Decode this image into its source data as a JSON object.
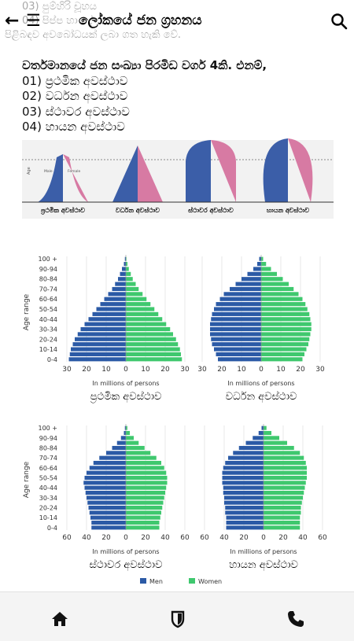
{
  "background_text": {
    "line1": "03) පුම්හිරි චූහය",
    "line2": "04) පිප්ප හා දේ",
    "line3": "පිළිබඳව අවබෝධයක් ලබා ගත හැකි වේ."
  },
  "app_bar": {
    "title": "ලෝකයේ ජන ග්‍රහනය",
    "back_icon": "arrow-left-icon",
    "menu_icon": "hamburger-icon",
    "search_icon": "search-icon"
  },
  "intro": {
    "heading": "වර්තමානයේ ජන සංඛ්‍යා පිරමිඩ වර්ග 4කි. එනම්,",
    "items": [
      "01) ප්‍රථමික අවස්ථාව",
      "02) වර්ධන අවස්ථාව",
      "03) ස්ථාවර අවස්ථාව",
      "04) හායන අවස්ථාව"
    ]
  },
  "shapes_figure": {
    "axis_label": "Age",
    "male_label": "Male",
    "female_label": "Female",
    "labels": [
      "ප්‍රථමික අවස්ථාව",
      "වර්ධන අවස්ථාව",
      "ස්ථාවර අවස්ථාව",
      "හායන අවස්ථාව"
    ]
  },
  "pyramid_labels": {
    "ylabel": "Age range",
    "xlabel": "In millions of persons",
    "legend_men": "Men",
    "legend_women": "Women",
    "captions": [
      "ප්‍රථමික අවස්ථාව",
      "වර්ධන අවස්ථාව",
      "ස්ථාවර අවස්ථාව",
      "හායන අවස්ථාව"
    ]
  },
  "colors": {
    "men": "#2b5aa6",
    "women": "#3fc86e",
    "male_shape": "#3b5ea8",
    "female_shape": "#d77aa3"
  },
  "chart_data": [
    {
      "type": "bar",
      "title": "ප්‍රථමික අවස්ථාව",
      "ylabel": "Age range",
      "xlabel": "In millions of persons",
      "categories": [
        "0-4",
        "5-9",
        "10-14",
        "15-19",
        "20-24",
        "25-29",
        "30-34",
        "35-39",
        "40-44",
        "45-49",
        "50-54",
        "55-59",
        "60-64",
        "65-69",
        "70-74",
        "75-79",
        "80-84",
        "85-89",
        "90-94",
        "95-99",
        "100 +"
      ],
      "tick_labels": [
        "0-4",
        "10-14",
        "20-24",
        "30-34",
        "40-44",
        "50-54",
        "60-64",
        "70-74",
        "80-84",
        "90-94",
        "100 +"
      ],
      "x_ticks": [
        "30",
        "20",
        "10",
        "0",
        "10",
        "20",
        "30"
      ],
      "xlim": [
        -30,
        30
      ],
      "series": [
        {
          "name": "Men",
          "values": [
            29,
            28.5,
            28,
            27,
            26,
            24.5,
            23,
            21,
            19,
            17,
            15,
            13,
            11,
            9,
            7,
            5.5,
            4,
            3,
            2,
            1,
            0.5
          ]
        },
        {
          "name": "Women",
          "values": [
            28.5,
            28,
            27.5,
            26.5,
            25.5,
            24,
            22.5,
            20.5,
            18.5,
            16.5,
            14.5,
            12.5,
            10.5,
            8.5,
            6.5,
            5,
            3.5,
            2.5,
            1.5,
            0.8,
            0.3
          ]
        }
      ]
    },
    {
      "type": "bar",
      "title": "වර්ධන අවස්ථාව",
      "ylabel": "",
      "xlabel": "In millions of persons",
      "categories": [
        "0-4",
        "5-9",
        "10-14",
        "15-19",
        "20-24",
        "25-29",
        "30-34",
        "35-39",
        "40-44",
        "45-49",
        "50-54",
        "55-59",
        "60-64",
        "65-69",
        "70-74",
        "75-79",
        "80-84",
        "85-89",
        "90-94",
        "95-99",
        "100 +"
      ],
      "tick_labels": [
        "0-4",
        "10-14",
        "20-24",
        "30-34",
        "40-44",
        "50-54",
        "60-64",
        "70-74",
        "80-84",
        "90-94",
        "100 +"
      ],
      "x_ticks": [
        "30",
        "20",
        "10",
        "0",
        "10",
        "20",
        "30"
      ],
      "xlim": [
        -30,
        30
      ],
      "series": [
        {
          "name": "Men",
          "values": [
            22,
            23,
            24,
            25,
            25.5,
            26,
            26,
            26,
            25.5,
            25,
            24,
            23,
            21,
            19,
            16,
            13,
            10,
            7,
            4,
            2,
            1
          ]
        },
        {
          "name": "Women",
          "values": [
            21,
            22,
            23,
            24,
            24.5,
            25,
            25.5,
            25.5,
            25,
            24.5,
            23.5,
            22.5,
            21,
            19,
            16.5,
            14,
            11,
            8,
            5,
            2.5,
            1
          ]
        }
      ]
    },
    {
      "type": "bar",
      "title": "ස්ථාවර අවස්ථාව",
      "ylabel": "Age range",
      "xlabel": "In millions of persons",
      "categories": [
        "0-4",
        "5-9",
        "10-14",
        "15-19",
        "20-24",
        "25-29",
        "30-34",
        "35-39",
        "40-44",
        "45-49",
        "50-54",
        "55-59",
        "60-64",
        "65-69",
        "70-74",
        "75-79",
        "80-84",
        "85-89",
        "90-94",
        "95-99",
        "100 +"
      ],
      "tick_labels": [
        "0-4",
        "10-14",
        "20-24",
        "30-34",
        "40-44",
        "50-54",
        "60-64",
        "70-74",
        "80-84",
        "90-94",
        "100 +"
      ],
      "x_ticks": [
        "60",
        "40",
        "20",
        "0",
        "20",
        "40",
        "60"
      ],
      "xlim": [
        -60,
        60
      ],
      "series": [
        {
          "name": "Men",
          "values": [
            35,
            35,
            36,
            37,
            38,
            39,
            40,
            41,
            42,
            43,
            42,
            40,
            37,
            33,
            27,
            20,
            14,
            9,
            5,
            2,
            1
          ]
        },
        {
          "name": "Women",
          "values": [
            34,
            34,
            35,
            36,
            37,
            38,
            39,
            40,
            41,
            42,
            42,
            41,
            39,
            36,
            31,
            25,
            19,
            13,
            8,
            4,
            1.5
          ]
        }
      ]
    },
    {
      "type": "bar",
      "title": "හායන අවස්ථාව",
      "ylabel": "",
      "xlabel": "In millions of persons",
      "categories": [
        "0-4",
        "5-9",
        "10-14",
        "15-19",
        "20-24",
        "25-29",
        "30-34",
        "35-39",
        "40-44",
        "45-49",
        "50-54",
        "55-59",
        "60-64",
        "65-69",
        "70-74",
        "75-79",
        "80-84",
        "85-89",
        "90-94",
        "95-99",
        "100 +"
      ],
      "tick_labels": [
        "0-4",
        "10-14",
        "20-24",
        "30-34",
        "40-44",
        "50-54",
        "60-64",
        "70-74",
        "80-84",
        "90-94",
        "100 +"
      ],
      "x_ticks": [
        "60",
        "40",
        "20",
        "0",
        "20",
        "40",
        "60"
      ],
      "xlim": [
        -60,
        60
      ],
      "series": [
        {
          "name": "Men",
          "values": [
            38,
            38,
            38,
            39,
            39,
            40,
            40,
            41,
            41,
            42,
            42,
            42,
            41,
            39,
            36,
            31,
            25,
            18,
            11,
            5,
            2
          ]
        },
        {
          "name": "Women",
          "values": [
            37,
            37,
            37,
            38,
            38,
            39,
            40,
            41,
            42,
            43,
            44,
            44,
            44,
            43,
            41,
            37,
            31,
            24,
            16,
            8,
            3
          ]
        }
      ]
    }
  ]
}
